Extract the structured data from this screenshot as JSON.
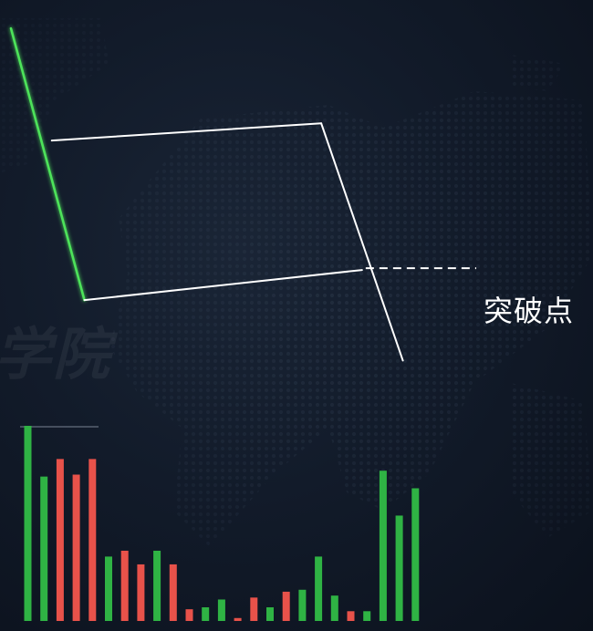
{
  "watermark": "学院",
  "colors": {
    "background": "#0e1522",
    "up": "#2fb344",
    "down": "#e8524a",
    "trend_line": "#4ee35a",
    "channel": "#ffffff",
    "dots": "#2a3648"
  },
  "chart_data": {
    "type": "line",
    "title": "",
    "xlabel": "",
    "ylabel": "",
    "grid": false,
    "legend": "none",
    "price_ylim": [
      0,
      100
    ],
    "series": [
      {
        "role": "downtrend",
        "color": "#4ee35a",
        "points": [
          [
            0,
            97
          ],
          [
            4.5,
            34
          ]
        ]
      },
      {
        "role": "flag-channel-upper",
        "color": "#ffffff",
        "points": [
          [
            2.5,
            71
          ],
          [
            19,
            75
          ]
        ]
      },
      {
        "role": "flag-channel-lower",
        "color": "#ffffff",
        "points": [
          [
            4.5,
            34
          ],
          [
            21.5,
            41
          ]
        ]
      },
      {
        "role": "breakout",
        "color": "#ffffff",
        "points": [
          [
            19,
            75
          ],
          [
            24,
            20
          ]
        ]
      }
    ],
    "annotation": {
      "label": "突破点",
      "x": 21.5,
      "y": 41,
      "style": "dashed"
    },
    "volume": {
      "ylim": [
        0,
        100
      ],
      "bars": [
        {
          "value": 100,
          "color": "up"
        },
        {
          "value": 74,
          "color": "up"
        },
        {
          "value": 83,
          "color": "down"
        },
        {
          "value": 75,
          "color": "down"
        },
        {
          "value": 83,
          "color": "down"
        },
        {
          "value": 33,
          "color": "up"
        },
        {
          "value": 36,
          "color": "down"
        },
        {
          "value": 29,
          "color": "down"
        },
        {
          "value": 36,
          "color": "up"
        },
        {
          "value": 29,
          "color": "down"
        },
        {
          "value": 6,
          "color": "down"
        },
        {
          "value": 7,
          "color": "up"
        },
        {
          "value": 11,
          "color": "up"
        },
        {
          "value": 1.5,
          "color": "down"
        },
        {
          "value": 12,
          "color": "down"
        },
        {
          "value": 7,
          "color": "up"
        },
        {
          "value": 15,
          "color": "down"
        },
        {
          "value": 16,
          "color": "up"
        },
        {
          "value": 33,
          "color": "up"
        },
        {
          "value": 13,
          "color": "up"
        },
        {
          "value": 5,
          "color": "down"
        },
        {
          "value": 5,
          "color": "up"
        },
        {
          "value": 77,
          "color": "up"
        },
        {
          "value": 54,
          "color": "up"
        },
        {
          "value": 68,
          "color": "up"
        }
      ]
    }
  }
}
